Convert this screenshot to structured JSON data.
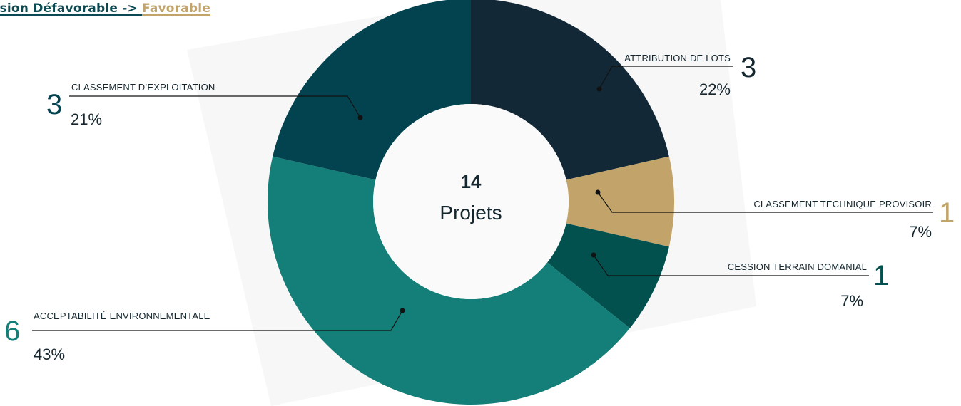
{
  "header": {
    "title_part_a": "rsion Défavorable -> ",
    "title_part_b": "Favorable"
  },
  "colors": {
    "dark_navy": "#132836",
    "dark_teal": "#02434f",
    "teal": "#137f78",
    "deep_green": "#03514f",
    "gold": "#c2a46a",
    "text": "#14262e"
  },
  "chart_data": {
    "type": "pie",
    "donut": true,
    "center": {
      "value": "14",
      "label": "Projets"
    },
    "slices": [
      {
        "label": "ATTRIBUTION DE LOTS",
        "count": 3,
        "percent": "22%",
        "color": "#132836",
        "count_color": "#14262e"
      },
      {
        "label": "CLASSEMENT TECHNIQUE PROVISOIR",
        "count": 1,
        "percent": "7%",
        "color": "#c2a46a",
        "count_color": "#c2a46a"
      },
      {
        "label": "CESSION TERRAIN DOMANIAL",
        "count": 1,
        "percent": "7%",
        "color": "#03514f",
        "count_color": "#03514f"
      },
      {
        "label": "ACCEPTABILITÉ ENVIRONNEMENTALE",
        "count": 6,
        "percent": "43%",
        "color": "#137f78",
        "count_color": "#137f78"
      },
      {
        "label": "CLASSEMENT D’EXPLOITATION",
        "count": 3,
        "percent": "21%",
        "color": "#02434f",
        "count_color": "#02434f"
      }
    ]
  }
}
